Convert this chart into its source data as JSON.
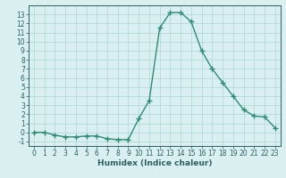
{
  "xlabel": "Humidex (Indice chaleur)",
  "x_values": [
    0,
    1,
    2,
    3,
    4,
    5,
    6,
    7,
    8,
    9,
    10,
    11,
    12,
    13,
    14,
    15,
    16,
    17,
    18,
    19,
    20,
    21,
    22,
    23
  ],
  "y_values": [
    0.0,
    0.0,
    -0.3,
    -0.5,
    -0.5,
    -0.4,
    -0.4,
    -0.7,
    -0.8,
    -0.8,
    1.5,
    3.5,
    11.5,
    13.2,
    13.2,
    12.2,
    9.0,
    7.0,
    5.5,
    4.0,
    2.5,
    1.8,
    1.7,
    0.5
  ],
  "line_color": "#2e8b74",
  "marker": "+",
  "marker_size": 4,
  "marker_linewidth": 1.0,
  "line_width": 1.0,
  "bg_color": "#daf0f0",
  "grid_color": "#aed4d4",
  "ylim": [
    -1.5,
    14.0
  ],
  "xlim": [
    -0.5,
    23.5
  ],
  "yticks": [
    -1,
    0,
    1,
    2,
    3,
    4,
    5,
    6,
    7,
    8,
    9,
    10,
    11,
    12,
    13
  ],
  "xticks": [
    0,
    1,
    2,
    3,
    4,
    5,
    6,
    7,
    8,
    9,
    10,
    11,
    12,
    13,
    14,
    15,
    16,
    17,
    18,
    19,
    20,
    21,
    22,
    23
  ],
  "tick_color": "#2e6060",
  "tick_fontsize": 5.5,
  "xlabel_fontsize": 6.5,
  "xlabel_fontweight": "bold"
}
